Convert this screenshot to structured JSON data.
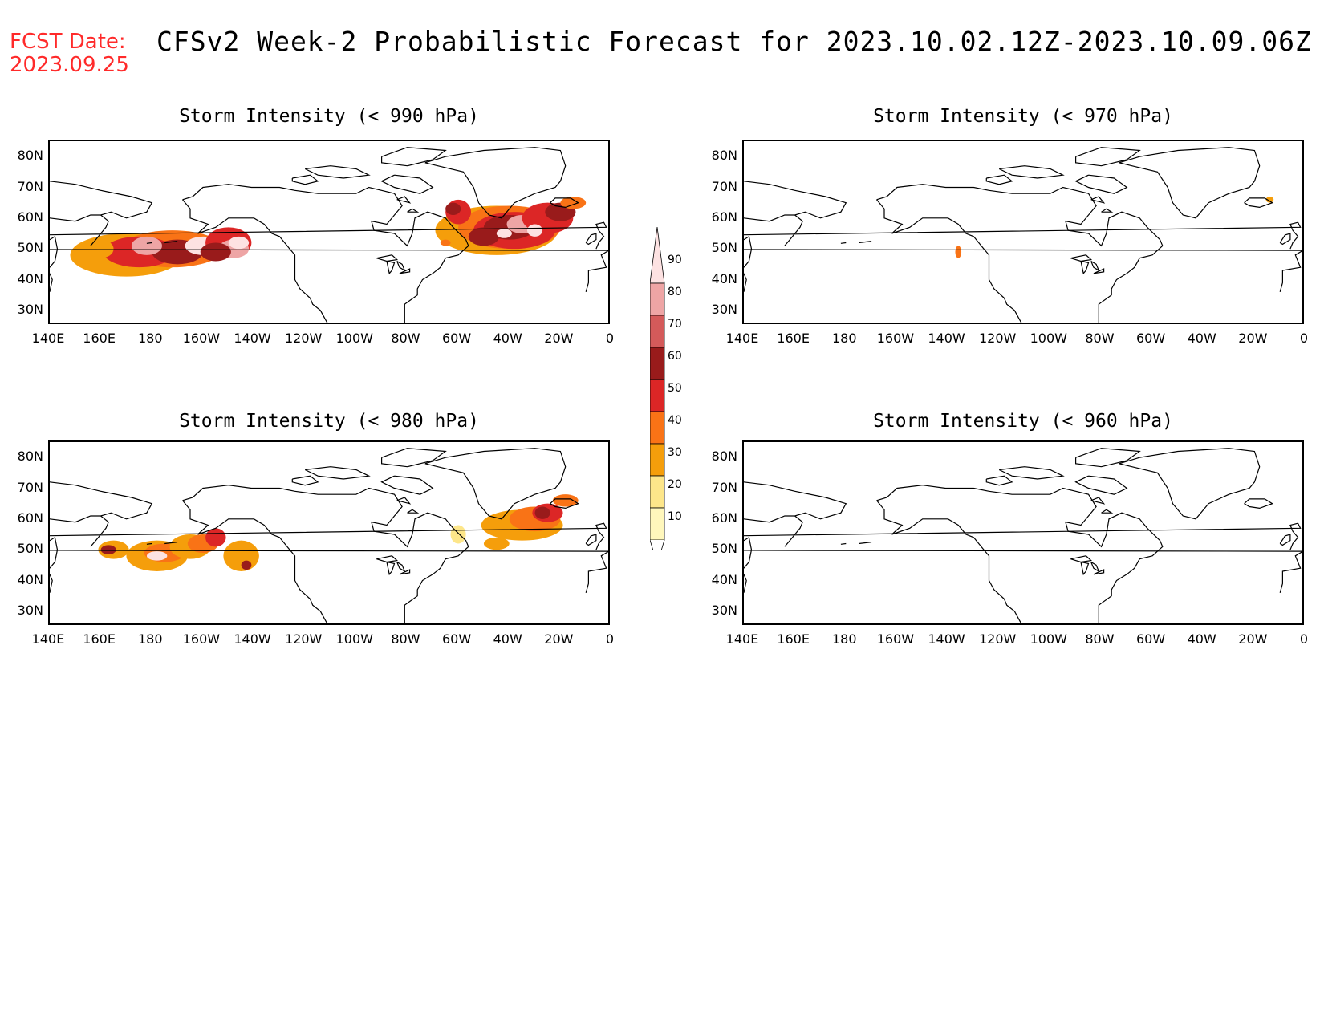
{
  "header": {
    "fcst_label": "FCST Date:",
    "fcst_date": "2023.09.25",
    "title": "CFSv2 Week-2 Probabilistic Forecast for 2023.10.02.12Z-2023.10.09.06Z"
  },
  "lat_ticks": [
    "80N",
    "70N",
    "60N",
    "50N",
    "40N",
    "30N"
  ],
  "lon_ticks": [
    "140E",
    "160E",
    "180",
    "160W",
    "140W",
    "120W",
    "100W",
    "80W",
    "60W",
    "40W",
    "20W",
    "0"
  ],
  "panels": [
    {
      "id": "p990",
      "title": "Storm Intensity (< 990 hPa)"
    },
    {
      "id": "p970",
      "title": "Storm Intensity (< 970 hPa)"
    },
    {
      "id": "p980",
      "title": "Storm Intensity (< 980 hPa)"
    },
    {
      "id": "p960",
      "title": "Storm Intensity (< 960 hPa)"
    }
  ],
  "colorbar": {
    "levels": [
      "10",
      "20",
      "30",
      "40",
      "50",
      "60",
      "70",
      "80",
      "90"
    ],
    "colors": [
      "#fff7bc",
      "#fde68a",
      "#f59e0b",
      "#f97316",
      "#dc2626",
      "#991b1b",
      "#d45a5a",
      "#eea5a5",
      "#fde2e2"
    ]
  },
  "map_data": {
    "type": "probability-shading",
    "levels_percent": [
      10,
      20,
      30,
      40,
      50,
      60,
      70,
      80,
      90
    ],
    "p990": [
      {
        "region": "North Pacific",
        "lon": [
          165,
          -145
        ],
        "lat": [
          45,
          55
        ],
        "max_level": 90
      },
      {
        "region": "North Atlantic",
        "lon": [
          -70,
          -10
        ],
        "lat": [
          47,
          67
        ],
        "max_level": 80
      }
    ],
    "p980": [
      {
        "region": "North Pacific",
        "lon": [
          160,
          -145
        ],
        "lat": [
          46,
          57
        ],
        "max_level": 80
      },
      {
        "region": "North Atlantic",
        "lon": [
          -55,
          -15
        ],
        "lat": [
          55,
          67
        ],
        "max_level": 60
      }
    ],
    "p970": [
      {
        "region": "Gulf of Alaska",
        "lon": [
          -137,
          -135
        ],
        "lat": [
          49,
          52
        ],
        "max_level": 30
      },
      {
        "region": "Iceland",
        "lon": [
          -15,
          -13
        ],
        "lat": [
          65,
          67
        ],
        "max_level": 20
      }
    ],
    "p960": []
  }
}
